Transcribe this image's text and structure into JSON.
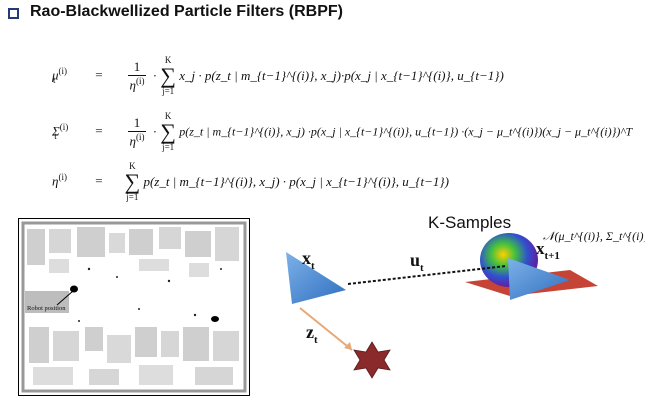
{
  "slide": {
    "title": "Rao-Blackwellized Particle Filters (RBPF)"
  },
  "equations": {
    "mu": {
      "lhs": "μ",
      "lhs_sup": "(i)",
      "lhs_sub": "t",
      "eq": "=",
      "frac_num": "1",
      "frac_den": "η",
      "frac_den_sup": "(i)",
      "sum_top": "K",
      "sum_bot": "j=1",
      "body": "x_j · p(z_t | m_{t−1}^{(i)}, x_j)·p(x_j | x_{t−1}^{(i)}, u_{t−1})"
    },
    "sigma": {
      "lhs": "Σ",
      "lhs_sup": "(i)",
      "lhs_sub": "t",
      "eq": "=",
      "frac_num": "1",
      "frac_den": "η",
      "frac_den_sup": "(i)",
      "sum_top": "K",
      "sum_bot": "j=1",
      "body": "p(z_t | m_{t−1}^{(i)}, x_j) ·p(x_j | x_{t−1}^{(i)}, u_{t−1})  ·(x_j − μ_t^{(i)})(x_j − μ_t^{(i)})^T"
    },
    "eta": {
      "lhs": "η",
      "lhs_sup": "(i)",
      "eq": "=",
      "sum_top": "K",
      "sum_bot": "j=1",
      "body": "p(z_t | m_{t−1}^{(i)}, x_j) · p(x_j | x_{t−1}^{(i)}, u_{t−1})"
    }
  },
  "map": {
    "annotation": "Robot position"
  },
  "diagram": {
    "k_samples": "K-Samples",
    "gaussian": "𝒩(μ_t^{(i)}, Σ_t^{(i)})",
    "x_t": "x",
    "x_t_sub": "t",
    "u_t": "u",
    "u_t_sub": "t",
    "z_t": "z",
    "z_t_sub": "t",
    "x_t1": "x",
    "x_t1_sub": "t+1",
    "colors": {
      "triangle": "#4a86cf",
      "star": "#8b2a2a",
      "arrow": "#e0a070"
    }
  }
}
